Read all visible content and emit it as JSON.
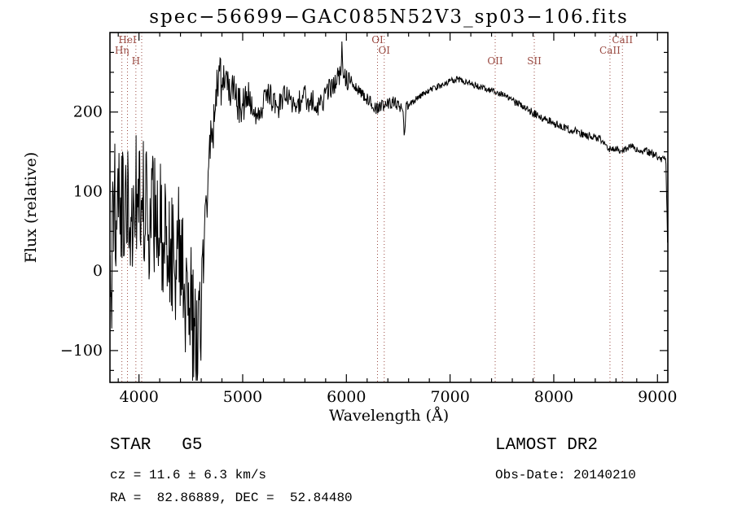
{
  "window": {
    "title": "spec−56699−GAC085N52V3_sp03−106.fits"
  },
  "chart_data": {
    "type": "line",
    "title": "spec−56699−GAC085N52V3_sp03−106.fits",
    "xlabel": "Wavelength (Å)",
    "ylabel": "Flux (relative)",
    "xlim": [
      3720,
      9100
    ],
    "ylim": [
      -140,
      300
    ],
    "xticks": [
      4000,
      5000,
      6000,
      7000,
      8000,
      9000
    ],
    "yticks": [
      -100,
      0,
      100,
      200
    ],
    "x_minor_step": 200,
    "y_minor_step": 25,
    "grid": false,
    "legend": "none",
    "line_color": "#000000",
    "frame_color": "#000000",
    "marker_color": "#9a4a42",
    "sample_step": 5,
    "seed": 987654321,
    "line_markers": [
      {
        "label": "Hη",
        "wavelength": 3835,
        "row": 1
      },
      {
        "label": "HeI",
        "wavelength": 3889,
        "row": 0
      },
      {
        "label": "H",
        "wavelength": 3970,
        "row": 2
      },
      {
        "label": "",
        "wavelength": 4026,
        "row": -1
      },
      {
        "label": "OI",
        "wavelength": 6300,
        "row": 0
      },
      {
        "label": "OI",
        "wavelength": 6365,
        "row": 1
      },
      {
        "label": "OII",
        "wavelength": 7435,
        "row": 2
      },
      {
        "label": "SII",
        "wavelength": 7812,
        "row": 2
      },
      {
        "label": "CaII",
        "wavelength": 8542,
        "row": 1
      },
      {
        "label": "CaII",
        "wavelength": 8662,
        "row": 0
      }
    ],
    "continuum": [
      [
        3720,
        30
      ],
      [
        3735,
        -30
      ],
      [
        3750,
        60
      ],
      [
        3775,
        85
      ],
      [
        3800,
        75
      ],
      [
        3825,
        60
      ],
      [
        3850,
        80
      ],
      [
        3875,
        65
      ],
      [
        3900,
        95
      ],
      [
        3925,
        75
      ],
      [
        3950,
        65
      ],
      [
        3975,
        90
      ],
      [
        4000,
        95
      ],
      [
        4025,
        110
      ],
      [
        4050,
        90
      ],
      [
        4075,
        70
      ],
      [
        4100,
        65
      ],
      [
        4125,
        85
      ],
      [
        4150,
        75
      ],
      [
        4175,
        60
      ],
      [
        4200,
        70
      ],
      [
        4225,
        55
      ],
      [
        4250,
        65
      ],
      [
        4275,
        45
      ],
      [
        4300,
        30
      ],
      [
        4325,
        20
      ],
      [
        4350,
        10
      ],
      [
        4375,
        35
      ],
      [
        4400,
        30
      ],
      [
        4425,
        -10
      ],
      [
        4450,
        -70
      ],
      [
        4475,
        -30
      ],
      [
        4500,
        -50
      ],
      [
        4525,
        -70
      ],
      [
        4540,
        -60
      ],
      [
        4560,
        -120
      ],
      [
        4580,
        -70
      ],
      [
        4600,
        -30
      ],
      [
        4625,
        20
      ],
      [
        4650,
        70
      ],
      [
        4675,
        120
      ],
      [
        4700,
        170
      ],
      [
        4725,
        205
      ],
      [
        4750,
        228
      ],
      [
        4770,
        232
      ],
      [
        4780,
        290
      ],
      [
        4790,
        230
      ],
      [
        4800,
        232
      ],
      [
        4825,
        238
      ],
      [
        4850,
        230
      ],
      [
        4875,
        228
      ],
      [
        4900,
        232
      ],
      [
        4925,
        222
      ],
      [
        4950,
        215
      ],
      [
        4975,
        205
      ],
      [
        5000,
        202
      ],
      [
        5025,
        212
      ],
      [
        5050,
        215
      ],
      [
        5075,
        212
      ],
      [
        5100,
        208
      ],
      [
        5125,
        200
      ],
      [
        5150,
        196
      ],
      [
        5175,
        192
      ],
      [
        5200,
        212
      ],
      [
        5225,
        218
      ],
      [
        5250,
        222
      ],
      [
        5300,
        214
      ],
      [
        5350,
        206
      ],
      [
        5400,
        220
      ],
      [
        5450,
        212
      ],
      [
        5500,
        202
      ],
      [
        5550,
        214
      ],
      [
        5600,
        222
      ],
      [
        5650,
        212
      ],
      [
        5700,
        216
      ],
      [
        5750,
        206
      ],
      [
        5800,
        220
      ],
      [
        5850,
        232
      ],
      [
        5900,
        240
      ],
      [
        5925,
        245
      ],
      [
        5950,
        252
      ],
      [
        5958,
        288
      ],
      [
        5966,
        250
      ],
      [
        6000,
        242
      ],
      [
        6050,
        234
      ],
      [
        6100,
        229
      ],
      [
        6150,
        224
      ],
      [
        6200,
        216
      ],
      [
        6250,
        210
      ],
      [
        6300,
        204
      ],
      [
        6350,
        208
      ],
      [
        6400,
        211
      ],
      [
        6450,
        212
      ],
      [
        6500,
        209
      ],
      [
        6545,
        206
      ],
      [
        6560,
        163
      ],
      [
        6575,
        206
      ],
      [
        6600,
        210
      ],
      [
        6650,
        214
      ],
      [
        6700,
        219
      ],
      [
        6750,
        223
      ],
      [
        6800,
        227
      ],
      [
        6850,
        230
      ],
      [
        6900,
        233
      ],
      [
        6950,
        236
      ],
      [
        7000,
        239
      ],
      [
        7050,
        241
      ],
      [
        7100,
        240
      ],
      [
        7150,
        238
      ],
      [
        7200,
        236
      ],
      [
        7250,
        233
      ],
      [
        7300,
        231
      ],
      [
        7350,
        229
      ],
      [
        7400,
        227
      ],
      [
        7450,
        224
      ],
      [
        7500,
        222
      ],
      [
        7550,
        219
      ],
      [
        7600,
        215
      ],
      [
        7650,
        211
      ],
      [
        7700,
        207
      ],
      [
        7750,
        203
      ],
      [
        7800,
        199
      ],
      [
        7850,
        196
      ],
      [
        7900,
        192
      ],
      [
        7950,
        189
      ],
      [
        8000,
        186
      ],
      [
        8050,
        183
      ],
      [
        8100,
        181
      ],
      [
        8150,
        178
      ],
      [
        8200,
        176
      ],
      [
        8250,
        174
      ],
      [
        8300,
        172
      ],
      [
        8350,
        170
      ],
      [
        8400,
        168
      ],
      [
        8450,
        165
      ],
      [
        8500,
        160
      ],
      [
        8550,
        152
      ],
      [
        8600,
        155
      ],
      [
        8650,
        150
      ],
      [
        8700,
        153
      ],
      [
        8750,
        156
      ],
      [
        8800,
        153
      ],
      [
        8850,
        151
      ],
      [
        8900,
        150
      ],
      [
        8950,
        147
      ],
      [
        9000,
        144
      ],
      [
        9050,
        141
      ],
      [
        9080,
        138
      ],
      [
        9100,
        25
      ]
    ],
    "noise_segments": [
      {
        "from": 3720,
        "to": 4600,
        "amp": 85
      },
      {
        "from": 4600,
        "to": 4760,
        "amp": 40
      },
      {
        "from": 4760,
        "to": 5060,
        "amp": 26
      },
      {
        "from": 5060,
        "to": 5900,
        "amp": 16
      },
      {
        "from": 5900,
        "to": 6060,
        "amp": 14
      },
      {
        "from": 6060,
        "to": 6600,
        "amp": 8
      },
      {
        "from": 6600,
        "to": 7600,
        "amp": 4
      },
      {
        "from": 7600,
        "to": 9060,
        "amp": 5
      },
      {
        "from": 9060,
        "to": 9101,
        "amp": 8
      }
    ]
  },
  "annotations": {
    "class_line": "STAR   G5",
    "survey": "LAMOST DR2",
    "cz_line": "cz = 11.6 ± 6.3 km/s",
    "obsdate_line": "Obs-Date: 20140210",
    "radec_line": "RA =  82.86889, DEC =  52.84480"
  }
}
